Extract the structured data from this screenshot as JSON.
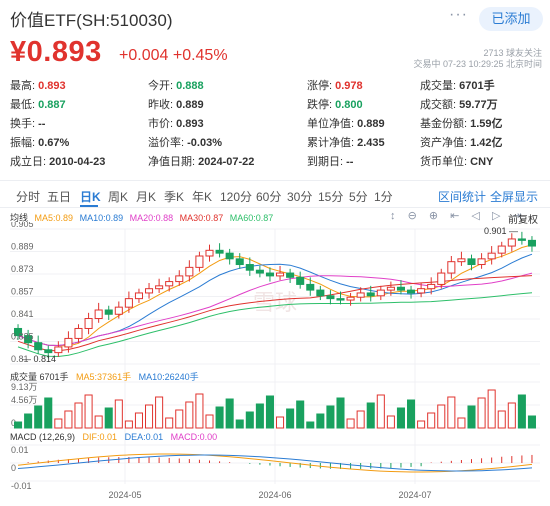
{
  "header": {
    "title": "价值ETF(SH:510030)",
    "more_icon": "···",
    "follow_label": "已添加"
  },
  "price": {
    "current": "¥0.893",
    "change": "+0.004",
    "change_pct": "+0.45%",
    "followers": "2713 球友关注",
    "trade_time": "交易中 07-23 10:29:25 北京时间"
  },
  "quote": [
    [
      {
        "label": "最高:",
        "value": "0.893",
        "color": "red"
      },
      {
        "label": "今开:",
        "value": "0.888",
        "color": "green"
      },
      {
        "label": "涨停:",
        "value": "0.978",
        "color": "red"
      },
      {
        "label": "成交量:",
        "value": "6701手",
        "color": "normal"
      }
    ],
    [
      {
        "label": "最低:",
        "value": "0.887",
        "color": "green"
      },
      {
        "label": "昨收:",
        "value": "0.889",
        "color": "normal"
      },
      {
        "label": "跌停:",
        "value": "0.800",
        "color": "green"
      },
      {
        "label": "成交额:",
        "value": "59.77万",
        "color": "normal"
      }
    ],
    [
      {
        "label": "换手:",
        "value": "--",
        "color": "normal"
      },
      {
        "label": "市价:",
        "value": "0.893",
        "color": "normal"
      },
      {
        "label": "单位净值:",
        "value": "0.889",
        "color": "normal"
      },
      {
        "label": "基金份额:",
        "value": "1.59亿",
        "color": "normal"
      }
    ],
    [
      {
        "label": "振幅:",
        "value": "0.67%",
        "color": "normal"
      },
      {
        "label": "溢价率:",
        "value": "-0.03%",
        "color": "normal"
      },
      {
        "label": "累计净值:",
        "value": "2.435",
        "color": "normal"
      },
      {
        "label": "资产净值:",
        "value": "1.42亿",
        "color": "normal"
      }
    ],
    [
      {
        "label": "成立日:",
        "value": "2010-04-23",
        "color": "normal"
      },
      {
        "label": "净值日期:",
        "value": "2024-07-22",
        "color": "normal"
      },
      {
        "label": "到期日:",
        "value": "--",
        "color": "normal"
      },
      {
        "label": "货币单位:",
        "value": "CNY",
        "color": "normal"
      }
    ]
  ],
  "tabs": [
    "分时",
    "五日",
    "日K",
    "周K",
    "月K",
    "季K",
    "年K",
    "120分",
    "60分",
    "30分",
    "15分",
    "5分",
    "1分"
  ],
  "active_tab": "日K",
  "tab_links": [
    "区间统计",
    "全屏显示"
  ],
  "kline": {
    "legend_label": "均线",
    "ma": [
      {
        "label": "MA5:0.89",
        "color": "#f39c12"
      },
      {
        "label": "MA10:0.89",
        "color": "#2b7cd3"
      },
      {
        "label": "MA20:0.88",
        "color": "#e040c8"
      },
      {
        "label": "MA30:0.87",
        "color": "#e0332e"
      },
      {
        "label": "MA60:0.87",
        "color": "#2ebf6a"
      }
    ],
    "tools": [
      "↕",
      "⊖",
      "⊕",
      "⇤",
      "◁",
      "▷",
      "⇥"
    ],
    "fq_label": "前复权",
    "y_labels": [
      "0.905",
      "0.889",
      "0.873",
      "0.857",
      "0.841",
      "0.825",
      "0.81"
    ],
    "high_label": "0.901",
    "low_label": "0.814",
    "watermark": "雪球"
  },
  "volume": {
    "legend": "成交量 6701手",
    "ma5": "MA5:37361手",
    "ma10": "MA10:26240手",
    "y_labels": [
      "9.13万",
      "4.56万",
      "0"
    ]
  },
  "macd": {
    "legend": "MACD (12,26,9)",
    "dif": "DIF:0.01",
    "dea": "DEA:0.01",
    "macd": "MACD:0.00",
    "y_labels": [
      "0.01",
      "0",
      "-0.01"
    ]
  },
  "x_labels": [
    "2024-05",
    "2024-06",
    "2024-07"
  ],
  "colors": {
    "up": "#e0332e",
    "down": "#19a15f",
    "accent": "#2b7cd3"
  }
}
